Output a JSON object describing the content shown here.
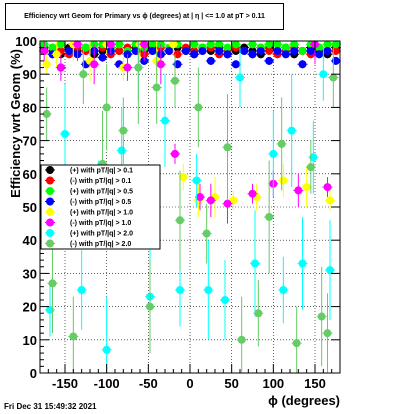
{
  "header": {
    "title": "Efficiency wrt Geom for Primary vs ϕ (degrees) at | η | <= 1.0 at pT > 0.11"
  },
  "footer": {
    "timestamp": "Fri Dec 31 15:49:32 2021"
  },
  "chart_data": {
    "type": "scatter",
    "title": "Efficiency wrt Geom for Primary vs ϕ (degrees) at | η | <= 1.0 at pT > 0.11",
    "xlabel": "ϕ (degrees)",
    "ylabel": "Efficiency wrt Geom (%)",
    "xlim": [
      -180,
      180
    ],
    "ylim": [
      0,
      100
    ],
    "x_ticks": [
      -150,
      -100,
      -50,
      0,
      50,
      100,
      150
    ],
    "y_ticks": [
      0,
      10,
      20,
      30,
      40,
      50,
      60,
      70,
      80,
      90,
      100
    ],
    "grid": true,
    "legend_position": "left-middle",
    "series": [
      {
        "name": "(+) with pT/|q| > 0.1",
        "color": "#000000",
        "marker": "circle",
        "x": [
          -175,
          -165,
          -155,
          -145,
          -135,
          -125,
          -115,
          -105,
          -95,
          -85,
          -75,
          -65,
          -55,
          -45,
          -35,
          -25,
          -15,
          -5,
          5,
          15,
          25,
          35,
          45,
          55,
          65,
          75,
          85,
          95,
          105,
          115,
          125,
          135,
          145,
          155,
          165,
          175
        ],
        "y": [
          98,
          97,
          96,
          98,
          97,
          98,
          96,
          97,
          98,
          97,
          96,
          98,
          97,
          98,
          96,
          97,
          98,
          97,
          96,
          98,
          97,
          98,
          96,
          97,
          98,
          97,
          96,
          98,
          97,
          98,
          96,
          97,
          98,
          97,
          96,
          98
        ]
      },
      {
        "name": "(-) with pT/|q| > 0.1",
        "color": "#ff0000",
        "marker": "circle",
        "x": [
          -175,
          -165,
          -155,
          -145,
          -135,
          -125,
          -115,
          -105,
          -95,
          -85,
          -75,
          -65,
          -55,
          -45,
          -35,
          -25,
          -15,
          -5,
          5,
          15,
          25,
          35,
          45,
          55,
          65,
          75,
          85,
          95,
          105,
          115,
          125,
          135,
          145,
          155,
          165,
          175
        ],
        "y": [
          97,
          98,
          97,
          96,
          98,
          97,
          97,
          98,
          96,
          97,
          98,
          97,
          96,
          97,
          98,
          97,
          96,
          98,
          97,
          97,
          98,
          96,
          97,
          98,
          97,
          96,
          98,
          97,
          96,
          97,
          98,
          97,
          96,
          98,
          97,
          97
        ]
      },
      {
        "name": "(+) with pT/|q| > 0.5",
        "color": "#00ff00",
        "marker": "circle",
        "x": [
          -175,
          -165,
          -155,
          -145,
          -135,
          -125,
          -115,
          -105,
          -95,
          -85,
          -75,
          -65,
          -55,
          -45,
          -35,
          -25,
          -15,
          -5,
          5,
          15,
          25,
          35,
          45,
          55,
          65,
          75,
          85,
          95,
          105,
          115,
          125,
          135,
          145,
          155,
          165,
          175
        ],
        "y": [
          99,
          98,
          99,
          97,
          99,
          98,
          99,
          99,
          98,
          99,
          97,
          99,
          98,
          99,
          99,
          98,
          99,
          97,
          99,
          98,
          99,
          99,
          98,
          99,
          97,
          99,
          98,
          99,
          99,
          98,
          99,
          97,
          99,
          98,
          99,
          99
        ]
      },
      {
        "name": "(-) with pT/|q| > 0.5",
        "color": "#0000ff",
        "marker": "circle",
        "x": [
          -175,
          -165,
          -155,
          -145,
          -135,
          -125,
          -115,
          -105,
          -95,
          -85,
          -75,
          -65,
          -55,
          -45,
          -35,
          -25,
          -15,
          -5,
          5,
          15,
          25,
          35,
          45,
          55,
          65,
          75,
          85,
          95,
          105,
          115,
          125,
          135,
          145,
          155,
          165,
          175
        ],
        "y": [
          97,
          96,
          92,
          97,
          96,
          93,
          97,
          95,
          97,
          93,
          96,
          97,
          94,
          97,
          96,
          97,
          93,
          97,
          96,
          97,
          94,
          97,
          96,
          93,
          97,
          96,
          97,
          94,
          97,
          96,
          97,
          93,
          97,
          96,
          97,
          94
        ]
      },
      {
        "name": "(+) with pT/|q| > 1.0",
        "color": "#ffff00",
        "marker": "circle",
        "x": [
          -172,
          -160,
          -140,
          -120,
          -100,
          -80,
          -60,
          -40,
          -20,
          -8,
          10,
          30,
          52,
          80,
          112,
          140,
          168
        ],
        "y": [
          93,
          96,
          99,
          94,
          99,
          92,
          99,
          94,
          99,
          59,
          52,
          53,
          52,
          53,
          58,
          56,
          52
        ]
      },
      {
        "name": "(-) with pT/|q| > 1.0",
        "color": "#ff00ff",
        "marker": "circle",
        "x": [
          -175,
          -155,
          -135,
          -115,
          -95,
          -75,
          -55,
          -35,
          -18,
          12,
          25,
          45,
          75,
          100,
          130,
          150,
          165
        ],
        "y": [
          97,
          92,
          99,
          93,
          99,
          92,
          99,
          93,
          66,
          53,
          52,
          51,
          54,
          57,
          55,
          99,
          56
        ]
      },
      {
        "name": "(+) with pT/|q| > 2.0",
        "color": "#00ffff",
        "marker": "circle",
        "x": [
          -168,
          -150,
          -130,
          -110,
          -100,
          -82,
          -62,
          -48,
          -30,
          -12,
          8,
          22,
          42,
          60,
          78,
          100,
          112,
          122,
          135,
          148,
          160,
          168
        ],
        "y": [
          19,
          72,
          25,
          55,
          7,
          67,
          92,
          23,
          76,
          25,
          58,
          25,
          22,
          89,
          33,
          66,
          25,
          73,
          33,
          65,
          90,
          31
        ]
      },
      {
        "name": "(-) with pT/|q| > 2.0",
        "color": "#66cc66",
        "marker": "circle",
        "x": [
          -172,
          -165,
          -140,
          -128,
          -105,
          -100,
          -80,
          -62,
          -48,
          -40,
          -18,
          -12,
          10,
          20,
          45,
          62,
          82,
          95,
          110,
          128,
          145,
          158,
          165,
          172
        ],
        "y": [
          78,
          27,
          11,
          90,
          63,
          80,
          73,
          92,
          20,
          86,
          88,
          46,
          80,
          42,
          68,
          10,
          18,
          47,
          69,
          9,
          62,
          17,
          12,
          89
        ]
      }
    ]
  }
}
